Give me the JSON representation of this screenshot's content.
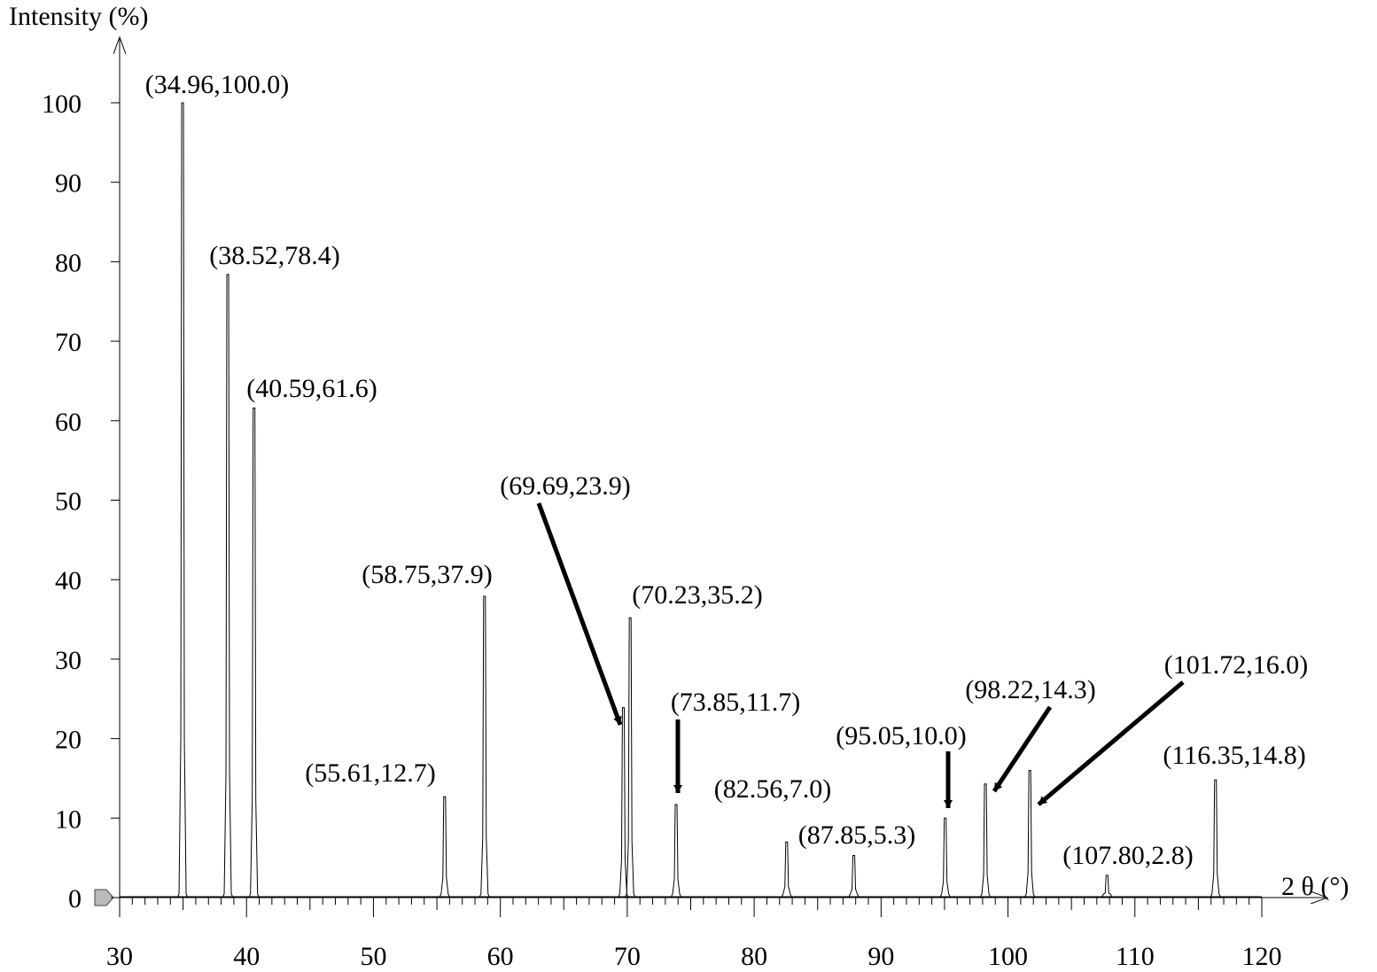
{
  "chart_data": {
    "type": "peaks",
    "ylabel": "Intensity (%)",
    "xlabel": "2 θ (°)",
    "xlim": [
      30,
      120
    ],
    "xticks": [
      30,
      40,
      50,
      60,
      70,
      80,
      90,
      100,
      110,
      120
    ],
    "ylim": [
      0,
      100
    ],
    "yticks": [
      0,
      10,
      20,
      30,
      40,
      50,
      60,
      70,
      80,
      90,
      100
    ],
    "color": "#000000",
    "x": [
      34.96,
      38.52,
      40.59,
      55.61,
      58.75,
      69.69,
      70.23,
      73.85,
      82.56,
      87.85,
      95.05,
      98.22,
      101.72,
      107.8,
      116.35
    ],
    "values": [
      100.0,
      78.4,
      61.6,
      12.7,
      37.9,
      23.9,
      35.2,
      11.7,
      7.0,
      5.3,
      10.0,
      14.3,
      16.0,
      2.8,
      14.8
    ],
    "value_labels": [
      "(34.96,100.0)",
      "(38.52,78.4)",
      "(40.59,61.6)",
      "(55.61,12.7)",
      "(58.75,37.9)",
      "(69.69,23.9)",
      "(70.23,35.2)",
      "(73.85,11.7)",
      "(82.56,7.0)",
      "(87.85,5.3)",
      "(95.05,10.0)",
      "(98.22,14.3)",
      "(101.72,16.0)",
      "(107.80,2.8)",
      "(116.35,14.8)"
    ]
  }
}
